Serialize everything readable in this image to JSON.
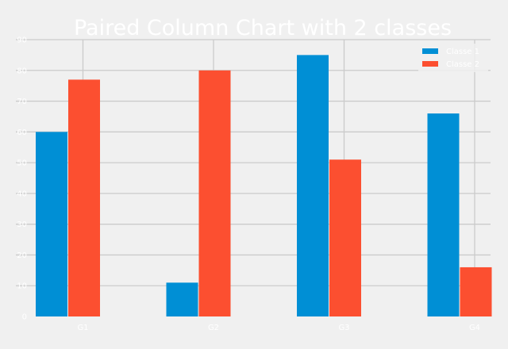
{
  "chart_data": {
    "type": "bar",
    "title": "Paired Column Chart with 2 classes",
    "xlabel": "",
    "ylabel": "",
    "categories": [
      "G1",
      "G2",
      "G3",
      "G4"
    ],
    "series": [
      {
        "name": "Classe 1",
        "values": [
          60,
          11,
          85,
          66
        ],
        "color": "#008fd5"
      },
      {
        "name": "Classe 2",
        "values": [
          77,
          80,
          51,
          16
        ],
        "color": "#fc4f30"
      }
    ],
    "ylim": [
      0,
      90
    ],
    "yticks": [
      0,
      10,
      20,
      30,
      40,
      50,
      60,
      70,
      80,
      90
    ],
    "grid": true,
    "legend_position": "top-right",
    "colors": {
      "background": "#f0f0f0",
      "grid": "#cbcbcb",
      "text": "#ffffff"
    }
  }
}
